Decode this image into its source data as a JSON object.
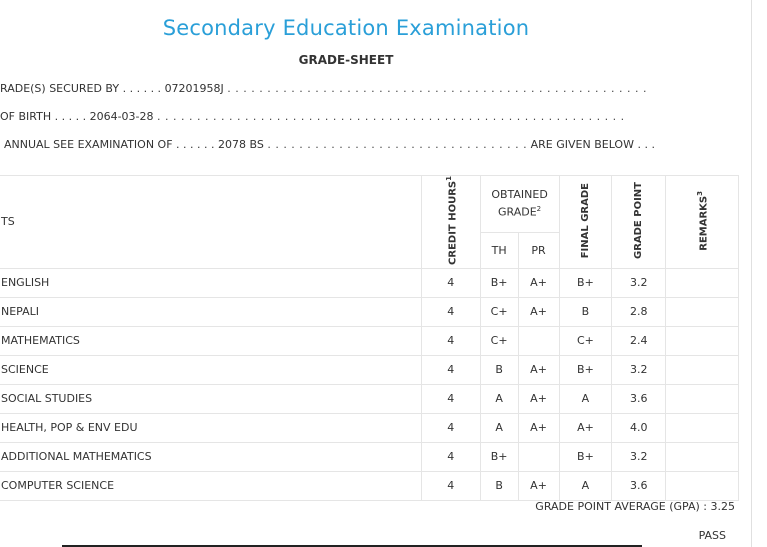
{
  "header": {
    "title": "Secondary Education Examination",
    "subtitle": "GRADE-SHEET"
  },
  "info": {
    "line1_label": "RADE(S) SECURED BY . . . . . .",
    "line1_value": "07201958J",
    "line1_dots": ". . . . . . . . . . . . . . . . . . . . . . . . . . . . . . . . . . . . . . . . . . . . . . . . . . . . .",
    "line2_label": "OF BIRTH . . . . .",
    "line2_value": "2064-03-28",
    "line2_dots": ". . . . . . . . . . . . . . . . . . . . . . . . . . . . . . . . . . . . . . . . . . . . . . . . . . . . . . . . . . .",
    "line3_label": "ANNUAL SEE EXAMINATION OF . . . . . .",
    "line3_value": "2078 BS",
    "line3_dots": ". . . . . . . . . . . . . . . . . . . . . . . . . . . . . . . . .",
    "line3_suffix": "ARE GIVEN BELOW . . ."
  },
  "table": {
    "headers": {
      "subjects": "TS",
      "credit": "CREDIT HOURS",
      "credit_sup": "1",
      "obtained": "OBTAINED GRADE",
      "obtained_sup": "2",
      "th": "TH",
      "pr": "PR",
      "final": "FINAL GRADE",
      "gp": "GRADE POINT",
      "remarks": "REMARKS",
      "remarks_sup": "3"
    },
    "rows": [
      {
        "subject": "ENGLISH",
        "credit": "4",
        "th": "B+",
        "pr": "A+",
        "final": "B+",
        "gp": "3.2",
        "remarks": ""
      },
      {
        "subject": "NEPALI",
        "credit": "4",
        "th": "C+",
        "pr": "A+",
        "final": "B",
        "gp": "2.8",
        "remarks": ""
      },
      {
        "subject": "MATHEMATICS",
        "credit": "4",
        "th": "C+",
        "pr": "",
        "final": "C+",
        "gp": "2.4",
        "remarks": ""
      },
      {
        "subject": "SCIENCE",
        "credit": "4",
        "th": "B",
        "pr": "A+",
        "final": "B+",
        "gp": "3.2",
        "remarks": ""
      },
      {
        "subject": "SOCIAL STUDIES",
        "credit": "4",
        "th": "A",
        "pr": "A+",
        "final": "A",
        "gp": "3.6",
        "remarks": ""
      },
      {
        "subject": "HEALTH, POP & ENV EDU",
        "credit": "4",
        "th": "A",
        "pr": "A+",
        "final": "A+",
        "gp": "4.0",
        "remarks": ""
      },
      {
        "subject": "ADDITIONAL MATHEMATICS",
        "credit": "4",
        "th": "B+",
        "pr": "",
        "final": "B+",
        "gp": "3.2",
        "remarks": ""
      },
      {
        "subject": "COMPUTER SCIENCE",
        "credit": "4",
        "th": "B",
        "pr": "A+",
        "final": "A",
        "gp": "3.6",
        "remarks": ""
      }
    ]
  },
  "summary": {
    "gpa": "GRADE POINT AVERAGE (GPA) : 3.25",
    "result": "PASS"
  }
}
